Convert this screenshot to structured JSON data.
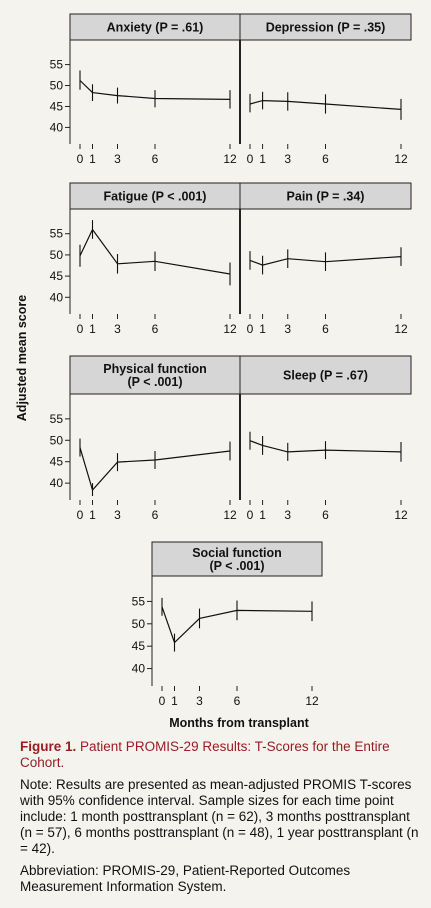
{
  "figure": {
    "ylabel": "Adjusted mean score",
    "xlabel": "Months from transplant",
    "caption_label": "Figure 1.",
    "caption_text": "Patient PROMIS-29 Results: T-Scores for the Entire Cohort.",
    "note": "Note: Results are presented as mean-adjusted PROMIS T-scores with 95% confidence interval. Sample sizes for each time point include: 1 month posttransplant (n = 62), 3 months posttransplant (n = 57), 6 months posttransplant (n = 48), 1 year posttransplant (n = 42).",
    "abbreviation": "Abbreviation: PROMIS-29, Patient-Reported Outcomes Measurement Information System."
  },
  "chart_data": [
    {
      "type": "line",
      "title": [
        "Anxiety (P = .61)"
      ],
      "x": [
        0,
        1,
        3,
        6,
        12
      ],
      "y": [
        51.2,
        48.3,
        47.6,
        46.9,
        46.7
      ],
      "ci": [
        [
          49.0,
          53.6
        ],
        [
          46.3,
          50.3
        ],
        [
          45.7,
          49.5
        ],
        [
          44.8,
          48.9
        ],
        [
          44.5,
          48.9
        ]
      ],
      "ylim": [
        37,
        58
      ],
      "yticks": [
        40,
        45,
        50,
        55
      ],
      "xticks": [
        0,
        1,
        3,
        6,
        12
      ]
    },
    {
      "type": "line",
      "title": [
        "Depression (P = .35)"
      ],
      "x": [
        0,
        1,
        3,
        6,
        12
      ],
      "y": [
        45.6,
        46.4,
        46.2,
        45.6,
        44.3
      ],
      "ci": [
        [
          43.6,
          48.0
        ],
        [
          44.3,
          48.5
        ],
        [
          44.0,
          48.4
        ],
        [
          43.3,
          47.9
        ],
        [
          41.8,
          46.8
        ]
      ],
      "ylim": [
        37,
        58
      ],
      "yticks": [
        40,
        45,
        50,
        55
      ],
      "xticks": [
        0,
        1,
        3,
        6,
        12
      ]
    },
    {
      "type": "line",
      "title": [
        "Fatigue (P < .001)"
      ],
      "x": [
        0,
        1,
        3,
        6,
        12
      ],
      "y": [
        49.8,
        56.0,
        47.9,
        48.5,
        45.5
      ],
      "ci": [
        [
          47.2,
          52.4
        ],
        [
          53.8,
          58.2
        ],
        [
          45.6,
          50.2
        ],
        [
          46.2,
          50.8
        ],
        [
          42.8,
          48.2
        ]
      ],
      "ylim": [
        37,
        58
      ],
      "yticks": [
        40,
        45,
        50,
        55
      ],
      "xticks": [
        0,
        1,
        3,
        6,
        12
      ]
    },
    {
      "type": "line",
      "title": [
        "Pain (P = .34)"
      ],
      "x": [
        0,
        1,
        3,
        6,
        12
      ],
      "y": [
        48.7,
        47.6,
        49.1,
        48.4,
        49.6
      ],
      "ci": [
        [
          46.5,
          50.9
        ],
        [
          45.4,
          49.8
        ],
        [
          46.9,
          51.3
        ],
        [
          46.2,
          50.6
        ],
        [
          47.4,
          51.8
        ]
      ],
      "ylim": [
        37,
        58
      ],
      "yticks": [
        40,
        45,
        50,
        55
      ],
      "xticks": [
        0,
        1,
        3,
        6,
        12
      ]
    },
    {
      "type": "line",
      "title": [
        "Physical function",
        "(P < .001)"
      ],
      "x": [
        0,
        1,
        3,
        6,
        12
      ],
      "y": [
        48.3,
        38.4,
        44.9,
        45.4,
        47.5
      ],
      "ci": [
        [
          46.2,
          50.4
        ],
        [
          37.0,
          40.0
        ],
        [
          42.8,
          47.0
        ],
        [
          43.3,
          47.5
        ],
        [
          45.3,
          49.7
        ]
      ],
      "ylim": [
        37,
        58
      ],
      "yticks": [
        40,
        45,
        50,
        55
      ],
      "xticks": [
        0,
        1,
        3,
        6,
        12
      ]
    },
    {
      "type": "line",
      "title": [
        "Sleep (P = .67)"
      ],
      "x": [
        0,
        1,
        3,
        6,
        12
      ],
      "y": [
        49.9,
        48.8,
        47.3,
        47.7,
        47.3
      ],
      "ci": [
        [
          47.8,
          52.0
        ],
        [
          46.6,
          51.0
        ],
        [
          45.2,
          49.4
        ],
        [
          45.6,
          49.8
        ],
        [
          45.0,
          49.6
        ]
      ],
      "ylim": [
        37,
        58
      ],
      "yticks": [
        40,
        45,
        50,
        55
      ],
      "xticks": [
        0,
        1,
        3,
        6,
        12
      ]
    },
    {
      "type": "line",
      "title": [
        "Social function",
        "(P < .001)"
      ],
      "x": [
        0,
        1,
        3,
        6,
        12
      ],
      "y": [
        53.8,
        45.8,
        51.2,
        53.0,
        52.8
      ],
      "ci": [
        [
          51.8,
          55.8
        ],
        [
          43.8,
          47.8
        ],
        [
          49.0,
          53.4
        ],
        [
          50.8,
          55.2
        ],
        [
          50.6,
          55.0
        ]
      ],
      "ylim": [
        37,
        58
      ],
      "yticks": [
        40,
        45,
        50,
        55
      ],
      "xticks": [
        0,
        1,
        3,
        6,
        12
      ]
    }
  ]
}
